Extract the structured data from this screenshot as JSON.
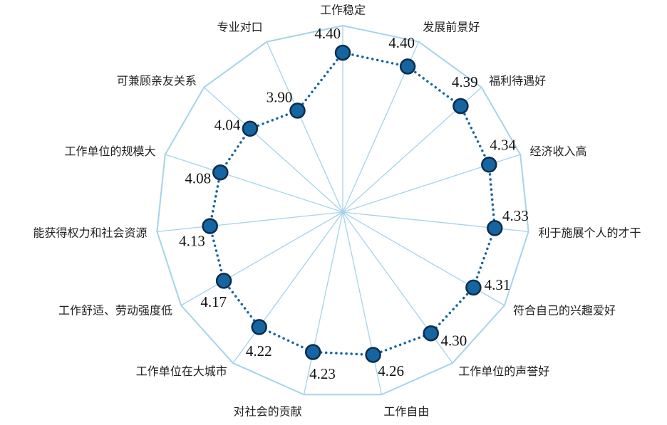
{
  "chart_data": {
    "type": "radar",
    "title": "",
    "categories": [
      "工作稳定",
      "发展前景好",
      "福利待遇好",
      "经济收入高",
      "利于施展个人的才干",
      "符合自己的兴趣爱好",
      "工作单位的声誉好",
      "工作自由",
      "对社会的贡献",
      "工作单位在大城市",
      "工作舒适、劳动强度低",
      "能获得权力和社会资源",
      "工作单位的规模大",
      "可兼顾亲友关系",
      "专业对口"
    ],
    "series": [
      {
        "name": "",
        "values": [
          4.4,
          4.4,
          4.39,
          4.34,
          4.33,
          4.31,
          4.3,
          4.26,
          4.23,
          4.22,
          4.17,
          4.13,
          4.08,
          4.04,
          3.9
        ]
      }
    ],
    "value_labels": [
      "4.40",
      "4.40",
      "4.39",
      "4.34",
      "4.33",
      "4.31",
      "4.30",
      "4.26",
      "4.23",
      "4.22",
      "4.17",
      "4.13",
      "4.08",
      "4.04",
      "3.90"
    ],
    "axis_range": [
      2.75,
      4.68
    ],
    "grid": false,
    "legend": "none",
    "colors": {
      "frame": "#a6d3ea",
      "spoke": "#a6d3ea",
      "line": "#1565a0",
      "marker_fill": "#1565a0",
      "marker_stroke": "#0c2d4c"
    }
  }
}
